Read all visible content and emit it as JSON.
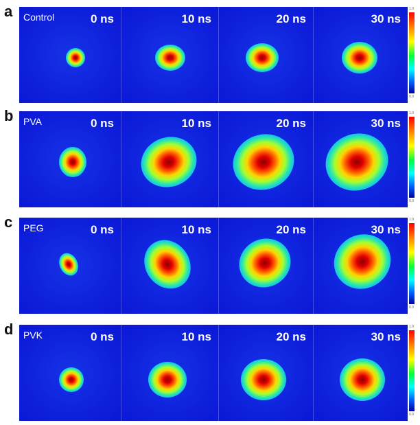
{
  "time_labels": [
    "0 ns",
    "10 ns",
    "20 ns",
    "30 ns"
  ],
  "colorbar": {
    "max": "1.0",
    "min": "0.0",
    "colors": [
      "#ff0000",
      "#ff8000",
      "#ffff00",
      "#00ff40",
      "#00ffff",
      "#0060ff",
      "#0000a0"
    ]
  },
  "background_color": "#0a17d8",
  "panels": [
    {
      "letter": "a",
      "sample": "Control"
    },
    {
      "letter": "b",
      "sample": "PVA"
    },
    {
      "letter": "c",
      "sample": "PEG"
    },
    {
      "letter": "d",
      "sample": "PVK"
    }
  ]
}
